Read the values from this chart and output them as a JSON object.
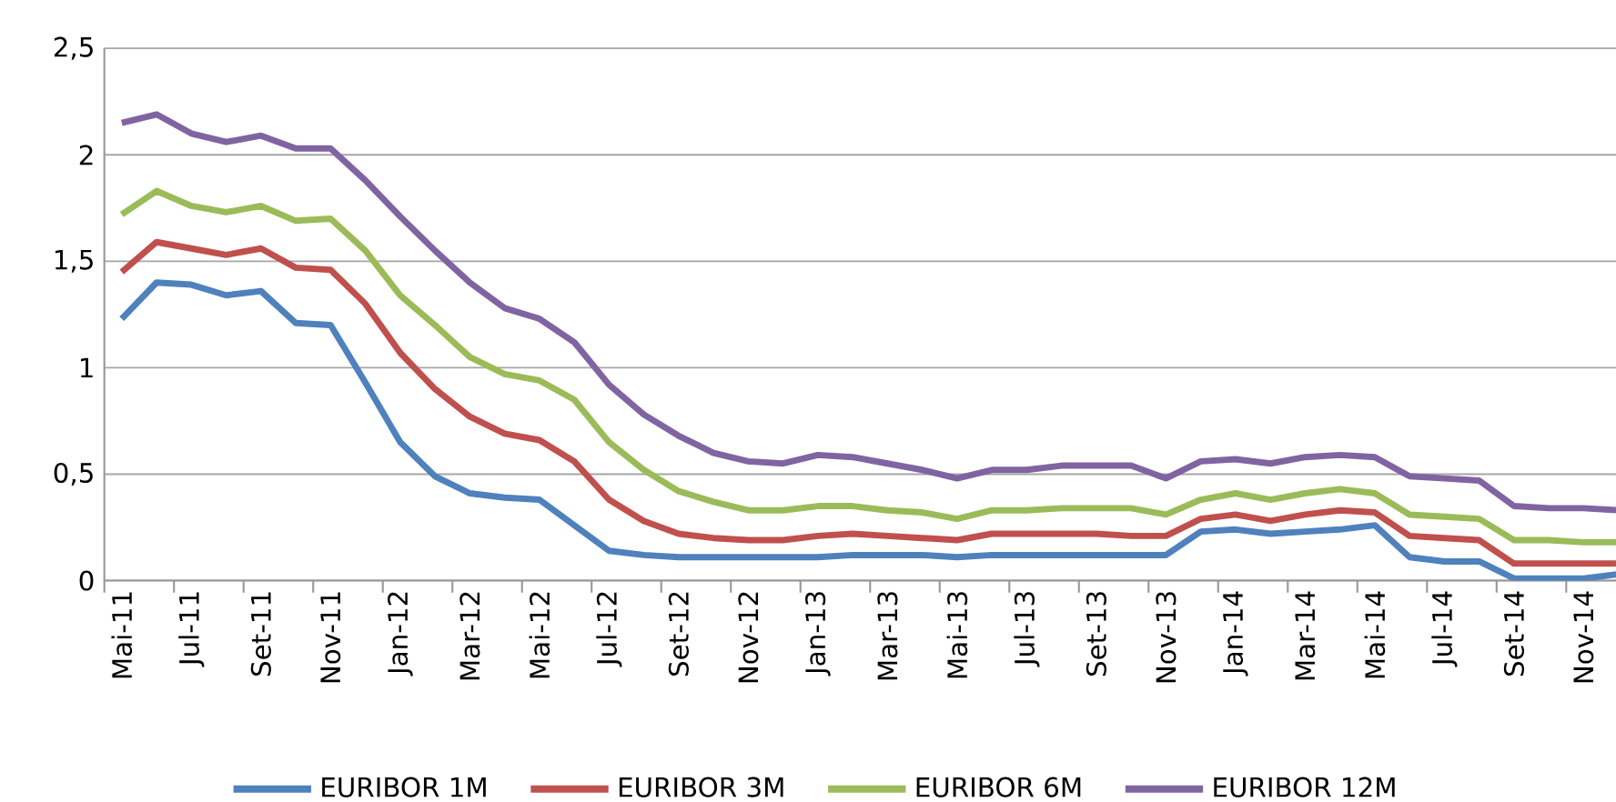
{
  "chart_data": {
    "type": "line",
    "categories": [
      "Mai-11",
      null,
      "Jul-11",
      null,
      "Set-11",
      null,
      "Nov-11",
      null,
      "Jan-12",
      null,
      "Mar-12",
      null,
      "Mai-12",
      null,
      "Jul-12",
      null,
      "Set-12",
      null,
      "Nov-12",
      null,
      "Jan-13",
      null,
      "Mar-13",
      null,
      "Mai-13",
      null,
      "Jul-13",
      null,
      "Set-13",
      null,
      "Nov-13",
      null,
      "Jan-14",
      null,
      "Mar-14",
      null,
      "Mai-14",
      null,
      "Jul-14",
      null,
      "Set-14",
      null,
      "Nov-14",
      null
    ],
    "series": [
      {
        "name": "EURIBOR 1M",
        "color": "#4f81bd",
        "values": [
          1.23,
          1.4,
          1.39,
          1.34,
          1.36,
          1.21,
          1.2,
          0.93,
          0.65,
          0.49,
          0.41,
          0.39,
          0.38,
          0.26,
          0.14,
          0.12,
          0.11,
          0.11,
          0.11,
          0.11,
          0.11,
          0.12,
          0.12,
          0.12,
          0.11,
          0.12,
          0.12,
          0.12,
          0.12,
          0.12,
          0.12,
          0.23,
          0.24,
          0.22,
          0.23,
          0.24,
          0.26,
          0.11,
          0.09,
          0.09,
          0.01,
          0.01,
          0.01,
          0.03
        ]
      },
      {
        "name": "EURIBOR 3M",
        "color": "#c0504d",
        "values": [
          1.45,
          1.59,
          1.56,
          1.53,
          1.56,
          1.47,
          1.46,
          1.3,
          1.07,
          0.9,
          0.77,
          0.69,
          0.66,
          0.56,
          0.38,
          0.28,
          0.22,
          0.2,
          0.19,
          0.19,
          0.21,
          0.22,
          0.21,
          0.2,
          0.19,
          0.22,
          0.22,
          0.22,
          0.22,
          0.21,
          0.21,
          0.29,
          0.31,
          0.28,
          0.31,
          0.33,
          0.32,
          0.21,
          0.2,
          0.19,
          0.08,
          0.08,
          0.08,
          0.08
        ]
      },
      {
        "name": "EURIBOR 6M",
        "color": "#9bbb59",
        "values": [
          1.72,
          1.83,
          1.76,
          1.73,
          1.76,
          1.69,
          1.7,
          1.55,
          1.34,
          1.2,
          1.05,
          0.97,
          0.94,
          0.85,
          0.65,
          0.52,
          0.42,
          0.37,
          0.33,
          0.33,
          0.35,
          0.35,
          0.33,
          0.32,
          0.29,
          0.33,
          0.33,
          0.34,
          0.34,
          0.34,
          0.31,
          0.38,
          0.41,
          0.38,
          0.41,
          0.43,
          0.41,
          0.31,
          0.3,
          0.29,
          0.19,
          0.19,
          0.18,
          0.18
        ]
      },
      {
        "name": "EURIBOR 12M",
        "color": "#8064a2",
        "values": [
          2.15,
          2.19,
          2.1,
          2.06,
          2.09,
          2.03,
          2.03,
          1.88,
          1.71,
          1.55,
          1.4,
          1.28,
          1.23,
          1.12,
          0.92,
          0.78,
          0.68,
          0.6,
          0.56,
          0.55,
          0.59,
          0.58,
          0.55,
          0.52,
          0.48,
          0.52,
          0.52,
          0.54,
          0.54,
          0.54,
          0.48,
          0.56,
          0.57,
          0.55,
          0.58,
          0.59,
          0.58,
          0.49,
          0.48,
          0.47,
          0.35,
          0.34,
          0.34,
          0.33
        ]
      }
    ],
    "ylim": [
      0,
      2.5
    ],
    "yticks": [
      0,
      {
        "value": 0.5,
        "label": "0,5"
      },
      1,
      {
        "value": 1.5,
        "label": "1,5"
      },
      2,
      {
        "value": 2.5,
        "label": "2,5"
      }
    ],
    "grid": "y",
    "legend": "bottom",
    "marker": "none",
    "line_style": "solid"
  }
}
